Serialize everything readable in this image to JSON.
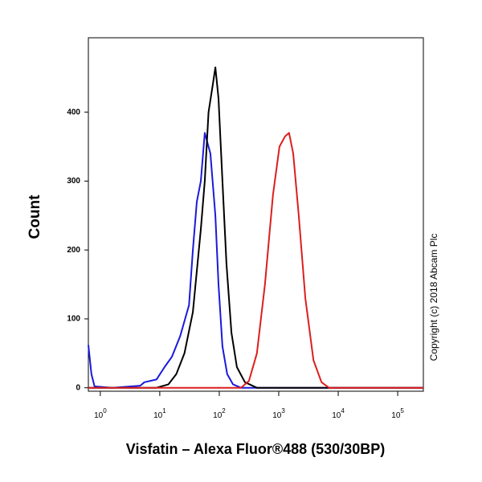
{
  "chart_data": {
    "type": "line",
    "xlabel": "Visfatin – Alexa Fluor®488 (530/30BP)",
    "ylabel": "Count",
    "annotation": "Copyright (c) 2018 Abcam Plc",
    "xscale": "log",
    "xlim": [
      0.63,
      270000
    ],
    "ylim": [
      -5,
      508
    ],
    "xticks": [
      {
        "value": 1,
        "label": "10",
        "sup": "0"
      },
      {
        "value": 10,
        "label": "10",
        "sup": "1"
      },
      {
        "value": 100,
        "label": "10",
        "sup": "2"
      },
      {
        "value": 1000,
        "label": "10",
        "sup": "3"
      },
      {
        "value": 10000,
        "label": "10",
        "sup": "4"
      },
      {
        "value": 100000,
        "label": "10",
        "sup": "5"
      }
    ],
    "yticks": [
      0,
      100,
      200,
      300,
      400
    ],
    "series": [
      {
        "color": "#1a1adc",
        "x": [
          0.63,
          0.71,
          0.8,
          1.6,
          4.7,
          5.5,
          8.8,
          12,
          16,
          22,
          31,
          36,
          42,
          49,
          57,
          71,
          86,
          97,
          113,
          136,
          170,
          232,
          270000
        ],
        "values": [
          62,
          20,
          2,
          0,
          3,
          8,
          12,
          30,
          45,
          75,
          120,
          200,
          270,
          300,
          370,
          340,
          250,
          150,
          60,
          20,
          5,
          0,
          0
        ]
      },
      {
        "color": "#000000",
        "x": [
          0.63,
          8.8,
          14,
          19,
          26,
          36,
          49,
          57,
          66,
          78,
          86,
          97,
          113,
          132,
          160,
          198,
          270,
          430,
          270000
        ],
        "values": [
          0,
          0,
          5,
          20,
          50,
          110,
          230,
          300,
          400,
          440,
          465,
          420,
          300,
          180,
          80,
          30,
          8,
          0,
          0
        ]
      },
      {
        "color": "#dc1e1e",
        "x": [
          0.63,
          232,
          316,
          430,
          586,
          800,
          1030,
          1280,
          1490,
          1750,
          2170,
          2800,
          3830,
          5240,
          7000,
          270000
        ],
        "values": [
          0,
          0,
          10,
          50,
          150,
          280,
          350,
          365,
          370,
          340,
          250,
          130,
          40,
          8,
          0,
          0
        ]
      }
    ]
  }
}
